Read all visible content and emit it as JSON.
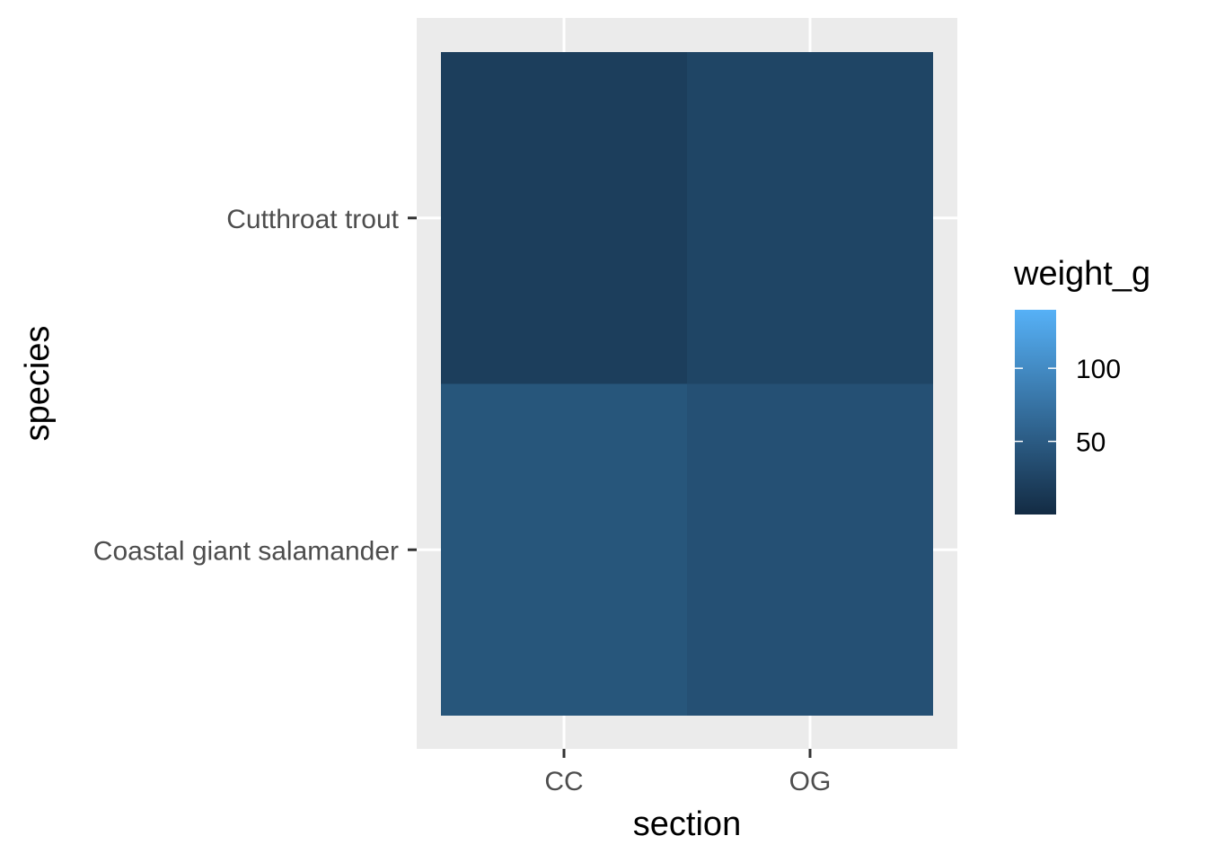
{
  "chart_data": {
    "type": "heatmap",
    "title": "",
    "xlabel": "section",
    "ylabel": "species",
    "x_categories": [
      "CC",
      "OG"
    ],
    "y_categories": [
      "Cutthroat trout",
      "Coastal giant salamander"
    ],
    "cells": [
      {
        "x": "CC",
        "y": "Cutthroat trout",
        "value": 8
      },
      {
        "x": "OG",
        "y": "Cutthroat trout",
        "value": 12
      },
      {
        "x": "CC",
        "y": "Coastal giant salamander",
        "value": 23
      },
      {
        "x": "OG",
        "y": "Coastal giant salamander",
        "value": 19
      }
    ],
    "legend": {
      "title": "weight_g",
      "placement": "right",
      "range": [
        0,
        140
      ],
      "ticks": [
        50,
        100
      ],
      "color_low": "#132B43",
      "color_high": "#56B1F7"
    },
    "panel_background": "#EBEBEB",
    "grid": true
  }
}
